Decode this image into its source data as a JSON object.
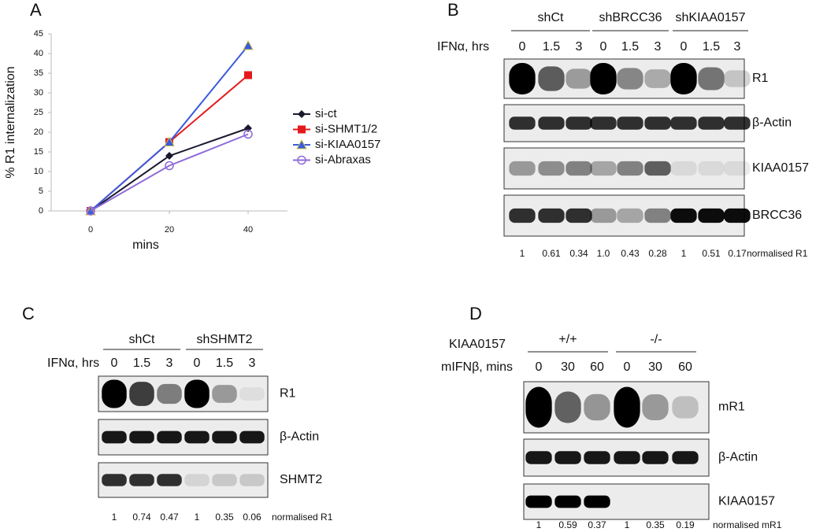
{
  "chart_data": {
    "type": "line",
    "panel_label": "A",
    "ylabel": "% R1 internalization",
    "xlabel": "mins",
    "x": [
      0,
      20,
      40
    ],
    "xlim": [
      -10,
      50
    ],
    "xticks": [
      0,
      20,
      40
    ],
    "ylim": [
      0,
      45
    ],
    "yticks": [
      0,
      5,
      10,
      15,
      20,
      25,
      30,
      35,
      40,
      45
    ],
    "legend": "right",
    "series": [
      {
        "name": "si-ct",
        "color": "#1a1a2e",
        "marker": "diamond",
        "values": [
          0,
          14,
          21
        ]
      },
      {
        "name": "si-SHMT1/2",
        "color": "#e31a1c",
        "marker": "square",
        "values": [
          0,
          17.5,
          34.5
        ]
      },
      {
        "name": "si-KIAA0157",
        "color": "#3b5bdb",
        "marker": "triangle",
        "values": [
          0,
          17.5,
          42
        ]
      },
      {
        "name": "si-Abraxas",
        "color": "#8e6bd8",
        "marker": "circle",
        "values": [
          0,
          11.5,
          19.5
        ]
      }
    ]
  },
  "blots": [
    {
      "label": "B",
      "treatment": "IFNα, hrs",
      "groups": [
        {
          "name": "shCt",
          "lanes": [
            "0",
            "1.5",
            "3"
          ]
        },
        {
          "name": "shBRCC36",
          "lanes": [
            "0",
            "1.5",
            "3"
          ]
        },
        {
          "name": "shKIAA0157",
          "lanes": [
            "0",
            "1.5",
            "3"
          ]
        }
      ],
      "rows": [
        "R1",
        "β-Actin",
        "KIAA0157",
        "BRCC36"
      ],
      "quant": [
        "1",
        "0.61",
        "0.34",
        "1.0",
        "0.43",
        "0.28",
        "1",
        "0.51",
        "0.17"
      ],
      "quant_label": "normalised R1"
    },
    {
      "label": "C",
      "treatment": "IFNα, hrs",
      "groups": [
        {
          "name": "shCt",
          "lanes": [
            "0",
            "1.5",
            "3"
          ]
        },
        {
          "name": "shSHMT2",
          "lanes": [
            "0",
            "1.5",
            "3"
          ]
        }
      ],
      "rows": [
        "R1",
        "β-Actin",
        "SHMT2"
      ],
      "quant": [
        "1",
        "0.74",
        "0.47",
        "1",
        "0.35",
        "0.06"
      ],
      "quant_label": "normalised R1"
    },
    {
      "label": "D",
      "genotype": "KIAA0157",
      "treatment": "mIFNβ, mins",
      "groups": [
        {
          "name": "+/+",
          "lanes": [
            "0",
            "30",
            "60"
          ]
        },
        {
          "name": "-/-",
          "lanes": [
            "0",
            "30",
            "60"
          ]
        }
      ],
      "rows": [
        "mR1",
        "β-Actin",
        "KIAA0157"
      ],
      "quant": [
        "1",
        "0.59",
        "0.37",
        "1",
        "0.35",
        "0.19"
      ],
      "quant_label": "normalised mR1"
    }
  ]
}
